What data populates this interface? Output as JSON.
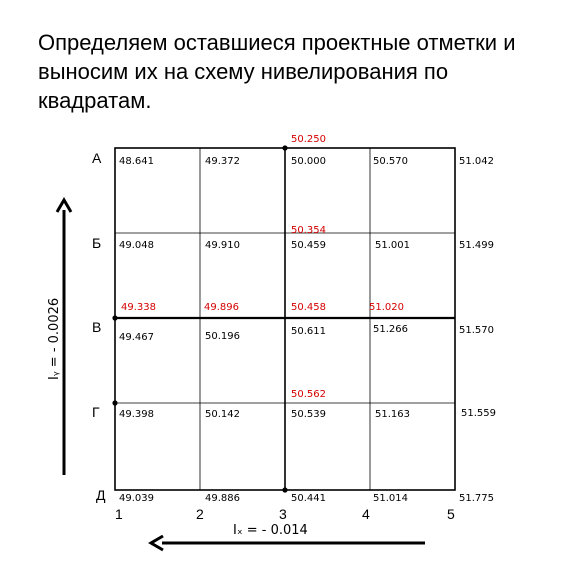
{
  "title": "Определяем оставшиеся проектные отметки и выносим их на схему нивелирования по квадратам.",
  "rows": [
    "А",
    "Б",
    "В",
    "Г",
    "Д"
  ],
  "columns": [
    "1",
    "2",
    "3",
    "4",
    "5"
  ],
  "ground_elevations": [
    [
      "48.641",
      "49.372",
      "50.000",
      "50.570",
      "51.042"
    ],
    [
      "49.048",
      "49.910",
      "50.459",
      "51.001",
      "51.499"
    ],
    [
      "49.467",
      "50.196",
      "50.611",
      "51.266",
      "51.570"
    ],
    [
      "49.398",
      "50.142",
      "50.539",
      "51.163",
      "51.559"
    ],
    [
      "49.039",
      "49.886",
      "50.441",
      "51.014",
      "51.775"
    ]
  ],
  "design_elevations": {
    "a3": "50.250",
    "b3": "50.354",
    "v1": "49.338",
    "v2": "49.896",
    "v3": "50.458",
    "v4": "51.020",
    "g3": "50.562"
  },
  "slope_y": "Iᵧ = - 0.0026",
  "slope_x": "Iₓ = - 0.014",
  "colors": {
    "design": "#d40000",
    "grid": "#000000"
  }
}
